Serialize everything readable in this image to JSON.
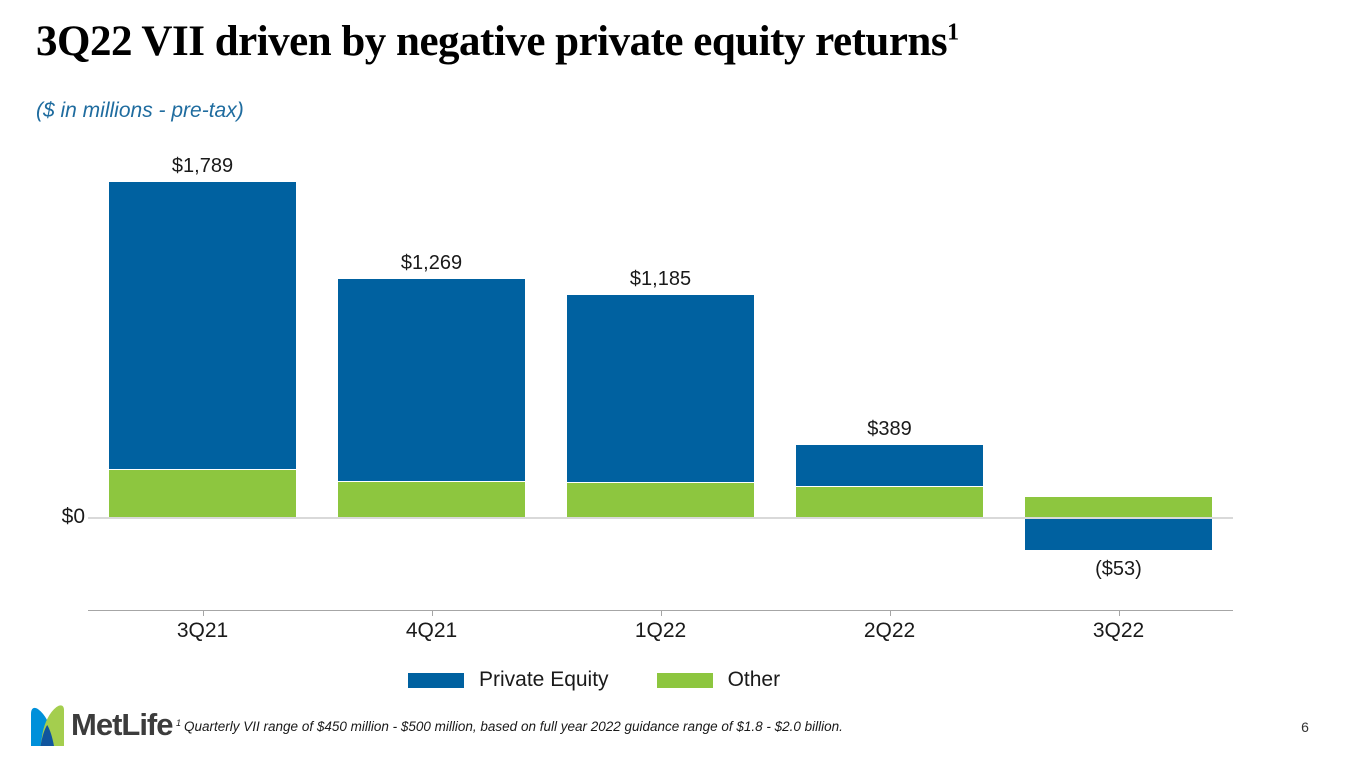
{
  "title": {
    "text": "3Q22 VII driven by negative private equity returns",
    "superscript": "1"
  },
  "subtitle": "($ in millions - pre-tax)",
  "chart_data": {
    "type": "bar",
    "stacked": true,
    "title": "3Q22 VII driven by negative private equity returns",
    "units": "$ in millions - pre-tax",
    "categories": [
      "3Q21",
      "4Q21",
      "1Q22",
      "2Q22",
      "3Q22"
    ],
    "series": [
      {
        "name": "Private Equity",
        "color": "#0061A0",
        "values": [
          1529,
          1074,
          995,
          219,
          -168
        ]
      },
      {
        "name": "Other",
        "color": "#8DC63F",
        "values": [
          260,
          195,
          190,
          170,
          115
        ]
      }
    ],
    "totals": [
      1789,
      1269,
      1185,
      389,
      -53
    ],
    "total_labels": [
      "$1,789",
      "$1,269",
      "$1,185",
      "$389",
      "($53)"
    ],
    "y_axis": {
      "zero_label": "$0",
      "gridlines": false,
      "ylim": [
        -300,
        2000
      ]
    },
    "legend_position": "bottom",
    "xlabel": "",
    "ylabel": ""
  },
  "legend": {
    "items": [
      {
        "label": "Private Equity",
        "color": "#0061A0"
      },
      {
        "label": "Other",
        "color": "#8DC63F"
      }
    ]
  },
  "footer": {
    "logo": {
      "text": "MetLife",
      "colors": {
        "left_leaf": "#0090DA",
        "right_leaf": "#A4CE4E",
        "overlap": "#10559E"
      }
    },
    "footnote_marker": "1",
    "footnote_text": "Quarterly VII range of $450 million - $500 million, based on full year 2022 guidance range of $1.8 - $2.0 billion.",
    "page_number": "6"
  },
  "colors": {
    "bar_blue": "#0061A0",
    "bar_green": "#8DC63F",
    "subtitle_blue": "#1F6C9F",
    "zero_line": "#D9D9D9",
    "axis_line": "#A6A6A6",
    "background": "#FFFFFF"
  }
}
